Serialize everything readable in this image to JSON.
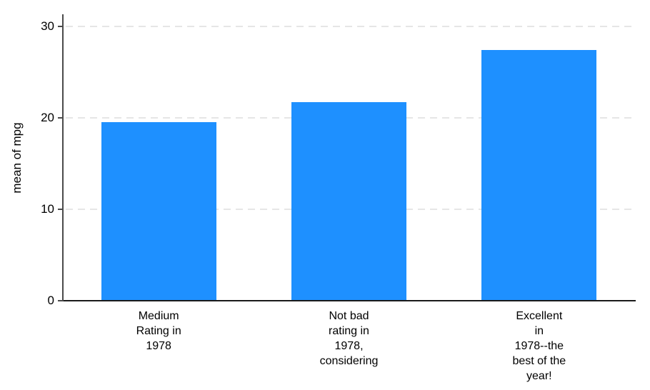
{
  "chart_data": {
    "type": "bar",
    "title": "",
    "xlabel": "",
    "ylabel": "mean of mpg",
    "ylim": [
      0,
      31.25
    ],
    "yticks": [
      0,
      10,
      20,
      30
    ],
    "grid": "horizontal-dashed",
    "legend_position": "none",
    "categories": [
      "Medium\nRating in\n1978",
      "Not bad\nrating in\n1978,\nconsidering",
      "Excellent\nin\n1978--the\nbest of the\nyear!"
    ],
    "values": [
      19.43,
      21.67,
      27.36
    ],
    "bar_color": "#1E90FF",
    "gridline_color": "#E6E6E6",
    "axis_color": "#4A4A4A",
    "text_color": "#000000"
  }
}
